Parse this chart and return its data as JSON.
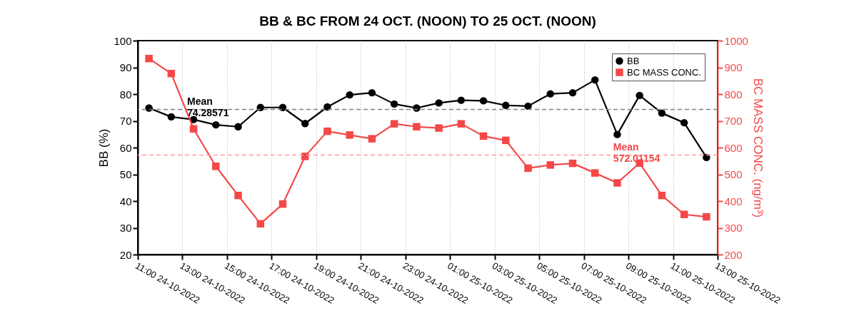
{
  "chart_data": {
    "type": "line",
    "title": "BB & BC FROM 24 OCT. (NOON) TO 25 OCT. (NOON)",
    "ylabel": "BB (%)",
    "y2label": "BC MASS CONC. (ng/m³)",
    "x": [
      "2022-10-24T11:30",
      "2022-10-24T12:30",
      "2022-10-24T13:30",
      "2022-10-24T14:30",
      "2022-10-24T15:30",
      "2022-10-24T16:30",
      "2022-10-24T17:30",
      "2022-10-24T18:30",
      "2022-10-24T19:30",
      "2022-10-24T20:30",
      "2022-10-24T21:30",
      "2022-10-24T22:30",
      "2022-10-24T23:30",
      "2022-10-25T00:30",
      "2022-10-25T01:30",
      "2022-10-25T02:30",
      "2022-10-25T03:30",
      "2022-10-25T04:30",
      "2022-10-25T05:30",
      "2022-10-25T06:30",
      "2022-10-25T07:30",
      "2022-10-25T08:30",
      "2022-10-25T09:30",
      "2022-10-25T10:30",
      "2022-10-25T11:30",
      "2022-10-25T12:30"
    ],
    "xlim": [
      "2022-10-24T11:00",
      "2022-10-25T13:00"
    ],
    "xticks": [
      {
        "value": "2022-10-24T11:00",
        "label": "11:00 24-10-2022"
      },
      {
        "value": "2022-10-24T13:00",
        "label": "13:00 24-10-2022"
      },
      {
        "value": "2022-10-24T15:00",
        "label": "15:00 24-10-2022"
      },
      {
        "value": "2022-10-24T17:00",
        "label": "17:00 24-10-2022"
      },
      {
        "value": "2022-10-24T19:00",
        "label": "19:00 24-10-2022"
      },
      {
        "value": "2022-10-24T21:00",
        "label": "21:00 24-10-2022"
      },
      {
        "value": "2022-10-24T23:00",
        "label": "23:00 24-10-2022"
      },
      {
        "value": "2022-10-25T01:00",
        "label": "01:00 25-10-2022"
      },
      {
        "value": "2022-10-25T03:00",
        "label": "03:00 25-10-2022"
      },
      {
        "value": "2022-10-25T05:00",
        "label": "05:00 25-10-2022"
      },
      {
        "value": "2022-10-25T07:00",
        "label": "07:00 25-10-2022"
      },
      {
        "value": "2022-10-25T09:00",
        "label": "09:00 25-10-2022"
      },
      {
        "value": "2022-10-25T11:00",
        "label": "11:00 25-10-2022"
      },
      {
        "value": "2022-10-25T13:00",
        "label": "13:00 25-10-2022"
      }
    ],
    "ylim": [
      20,
      100
    ],
    "yticks": [
      20,
      30,
      40,
      50,
      60,
      70,
      80,
      90,
      100
    ],
    "y2lim": [
      200,
      1000
    ],
    "y2ticks": [
      200,
      300,
      400,
      500,
      600,
      700,
      800,
      900,
      1000
    ],
    "series": [
      {
        "name": "BB",
        "color": "#000000",
        "marker": "circle",
        "values": [
          74.8,
          71.5,
          70.5,
          68.5,
          67.8,
          75,
          75,
          69,
          75.2,
          79.7,
          80.5,
          76.3,
          74.8,
          76.7,
          77.7,
          77.5,
          75.8,
          75.5,
          80.1,
          80.5,
          85.3,
          64.9,
          79.5,
          72.9,
          69.3,
          56.3
        ]
      },
      {
        "name": "BC MASS CONC.",
        "color": "#f44848",
        "marker": "square",
        "axis": "y2",
        "values": [
          933,
          877,
          670,
          530,
          421,
          315,
          389,
          567,
          661,
          647,
          633,
          689,
          678,
          673,
          689,
          643,
          627,
          523,
          535,
          541,
          505,
          468,
          542,
          421,
          350,
          341
        ]
      }
    ],
    "ref_lines": [
      {
        "axis": "y",
        "value": 74.28571,
        "label": "Mean 74.28571",
        "color": "#808080",
        "line_style": "dashed"
      },
      {
        "axis": "y2",
        "value": 572.01154,
        "label": "Mean 572.01154",
        "color": "#ff9a9a",
        "line_style": "dashed"
      }
    ],
    "grid": "x",
    "legend": "top right",
    "line_style": "solid"
  }
}
